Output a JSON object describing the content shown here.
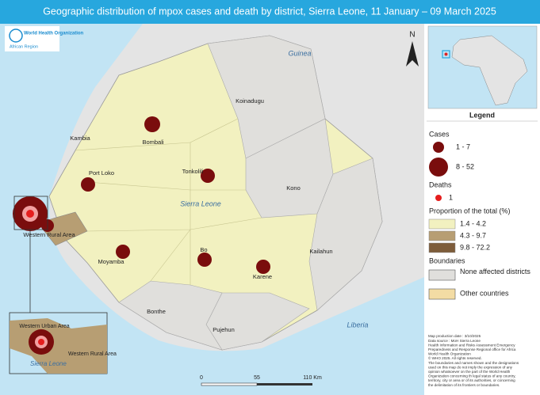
{
  "header": {
    "title": "Geographic distribution of mpox cases and death by district, Sierra Leone, 11 January – 09 March 2025"
  },
  "logo": {
    "name": "World Health Organization",
    "region": "African Region"
  },
  "north": "N",
  "map": {
    "countries": [
      "Guinea",
      "Liberia",
      "Sierra Leone"
    ],
    "districts": [
      "Koinadugu",
      "Kambia",
      "Bombali",
      "Port Loko",
      "Tonkolili",
      "Kono",
      "Western Rural Area",
      "Moyamba",
      "Bo",
      "Kailahun",
      "Karene",
      "Bonthe",
      "Pujehun"
    ],
    "inset": [
      "Western Urban Area",
      "Western Rural Area",
      "Sierra Leone"
    ]
  },
  "scale": [
    "0",
    "55",
    "110 Km"
  ],
  "legend": {
    "title": "Legend",
    "cases_title": "Cases",
    "cases": [
      "1 - 7",
      "8 - 52"
    ],
    "deaths_title": "Deaths",
    "deaths": [
      "1"
    ],
    "proportion_title": "Proportion of the total (%)",
    "proportion": [
      "1.4 - 4.2",
      "4.3 - 9.7",
      "9.8 - 72.2"
    ],
    "boundaries_title": "Boundaries",
    "boundaries": [
      "None affected districts",
      "Other countries"
    ]
  },
  "disclaimer": [
    "Map production date : 3/10/2025",
    "Data source : MoH Sierra Leone",
    "Health Information and Risks Assessment Emergency",
    "Preparedness and Response Regional office for Africa",
    "World Health Organization",
    "© WHO 2025. All rights reserved.",
    "The boundaries and names shown and the designations",
    "used on this map do not imply the expression of any",
    "opinion whatsoever on the part of the World Health",
    "Organization concerning th legal status of any country,",
    "territory, city or area or of its authorities, or concerning",
    "the delimitation of its frontiers or boundaries."
  ]
}
